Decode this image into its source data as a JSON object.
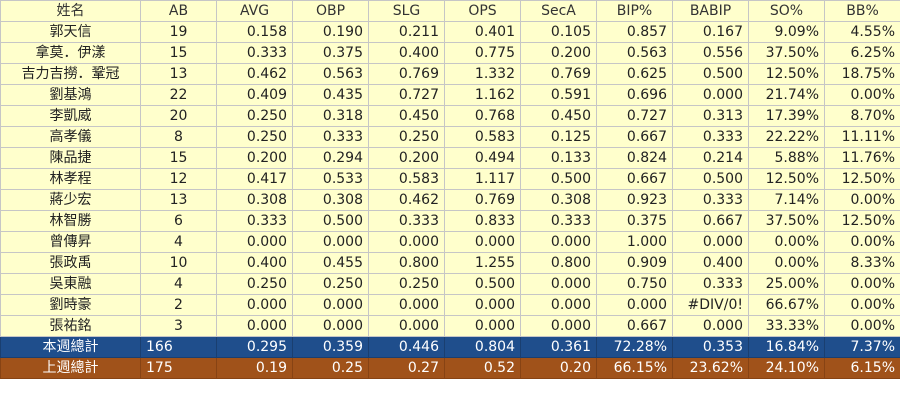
{
  "headers": [
    "姓名",
    "AB",
    "AVG",
    "OBP",
    "SLG",
    "OPS",
    "SecA",
    "BIP%",
    "BABIP",
    "SO%",
    "BB%"
  ],
  "rows": [
    [
      "郭天信",
      "19",
      "0.158",
      "0.190",
      "0.211",
      "0.401",
      "0.105",
      "0.857",
      "0.167",
      "9.09%",
      "4.55%"
    ],
    [
      "拿莫．伊漾",
      "15",
      "0.333",
      "0.375",
      "0.400",
      "0.775",
      "0.200",
      "0.563",
      "0.556",
      "37.50%",
      "6.25%"
    ],
    [
      "吉力吉撈．鞏冠",
      "13",
      "0.462",
      "0.563",
      "0.769",
      "1.332",
      "0.769",
      "0.625",
      "0.500",
      "12.50%",
      "18.75%"
    ],
    [
      "劉基鴻",
      "22",
      "0.409",
      "0.435",
      "0.727",
      "1.162",
      "0.591",
      "0.696",
      "0.000",
      "21.74%",
      "0.00%"
    ],
    [
      "李凱威",
      "20",
      "0.250",
      "0.318",
      "0.450",
      "0.768",
      "0.450",
      "0.727",
      "0.313",
      "17.39%",
      "8.70%"
    ],
    [
      "高孝儀",
      "8",
      "0.250",
      "0.333",
      "0.250",
      "0.583",
      "0.125",
      "0.667",
      "0.333",
      "22.22%",
      "11.11%"
    ],
    [
      "陳品捷",
      "15",
      "0.200",
      "0.294",
      "0.200",
      "0.494",
      "0.133",
      "0.824",
      "0.214",
      "5.88%",
      "11.76%"
    ],
    [
      "林孝程",
      "12",
      "0.417",
      "0.533",
      "0.583",
      "1.117",
      "0.500",
      "0.667",
      "0.500",
      "12.50%",
      "12.50%"
    ],
    [
      "蔣少宏",
      "13",
      "0.308",
      "0.308",
      "0.462",
      "0.769",
      "0.308",
      "0.923",
      "0.333",
      "7.14%",
      "0.00%"
    ],
    [
      "林智勝",
      "6",
      "0.333",
      "0.500",
      "0.333",
      "0.833",
      "0.333",
      "0.375",
      "0.667",
      "37.50%",
      "12.50%"
    ],
    [
      "曾傳昇",
      "4",
      "0.000",
      "0.000",
      "0.000",
      "0.000",
      "0.000",
      "1.000",
      "0.000",
      "0.00%",
      "0.00%"
    ],
    [
      "張政禹",
      "10",
      "0.400",
      "0.455",
      "0.800",
      "1.255",
      "0.800",
      "0.909",
      "0.400",
      "0.00%",
      "8.33%"
    ],
    [
      "吳東融",
      "4",
      "0.250",
      "0.250",
      "0.250",
      "0.500",
      "0.000",
      "0.750",
      "0.333",
      "25.00%",
      "0.00%"
    ],
    [
      "劉時豪",
      "2",
      "0.000",
      "0.000",
      "0.000",
      "0.000",
      "0.000",
      "0.000",
      "#DIV/0!",
      "66.67%",
      "0.00%"
    ],
    [
      "張祐銘",
      "3",
      "0.000",
      "0.000",
      "0.000",
      "0.000",
      "0.000",
      "0.667",
      "0.000",
      "33.33%",
      "0.00%"
    ]
  ],
  "totals_week": [
    "本週總計",
    "166",
    "0.295",
    "0.359",
    "0.446",
    "0.804",
    "0.361",
    "72.28%",
    "0.353",
    "16.84%",
    "7.37%"
  ],
  "totals_last": [
    "上週總計",
    "175",
    "0.19",
    "0.25",
    "0.27",
    "0.52",
    "0.20",
    "66.15%",
    "23.62%",
    "24.10%",
    "6.15%"
  ],
  "colors": {
    "row_background": "#ffffcc",
    "grid_line": "#c6c6c6",
    "total_week_background": "#1f4e8c",
    "total_last_background": "#a0521a",
    "total_text": "#ffffff"
  }
}
